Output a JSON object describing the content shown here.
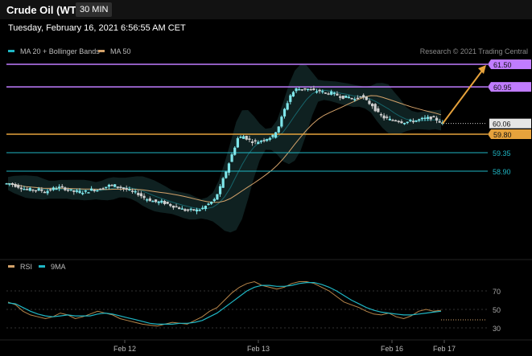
{
  "header": {
    "title": "Crude Oil (WTI)",
    "timeframe": "30 MIN"
  },
  "timestamp": "Tuesday, February 16, 2021 6:56:55 AM CET",
  "legend": {
    "bands": "MA 20 + Bollinger Bands",
    "ma50": "MA 50",
    "credit": "Research © 2021 Trading Central"
  },
  "rsi_legend": {
    "rsi": "RSI",
    "ma": "9MA"
  },
  "colors": {
    "purple": "#c07cff",
    "orange": "#e6a23c",
    "teal": "#1fb6c4",
    "tan": "#d4a26a",
    "current": "#dddddd"
  },
  "chart_data": [
    {
      "type": "candlestick",
      "levels": [
        {
          "value": 61.5,
          "label": "61.50",
          "style": "purple"
        },
        {
          "value": 60.95,
          "label": "60.95",
          "style": "purple"
        },
        {
          "value": 60.06,
          "label": "60.06",
          "style": "current"
        },
        {
          "value": 59.8,
          "label": "59.80",
          "style": "orange"
        },
        {
          "value": 59.35,
          "label": "59.35",
          "style": "teal"
        },
        {
          "value": 58.9,
          "label": "58.90",
          "style": "teal"
        }
      ],
      "x_ticks": [
        "Feb 12",
        "Feb 13",
        "Feb 16",
        "Feb 17"
      ],
      "close_path": [
        58.6,
        58.55,
        58.5,
        58.45,
        58.45,
        58.45,
        58.4,
        58.45,
        58.5,
        58.5,
        58.45,
        58.4,
        58.4,
        58.4,
        58.45,
        58.45,
        58.5,
        58.55,
        58.55,
        58.5,
        58.45,
        58.4,
        58.35,
        58.25,
        58.2,
        58.15,
        58.15,
        58.1,
        58.05,
        58.0,
        57.95,
        57.95,
        57.95,
        58.0,
        58.1,
        58.2,
        58.5,
        58.9,
        59.3,
        59.7,
        59.75,
        59.65,
        59.6,
        59.65,
        59.7,
        59.75,
        60.0,
        60.4,
        60.75,
        60.9,
        60.9,
        60.9,
        60.85,
        60.85,
        60.8,
        60.8,
        60.75,
        60.7,
        60.7,
        60.65,
        60.75,
        60.6,
        60.5,
        60.3,
        60.2,
        60.15,
        60.15,
        60.1,
        60.1,
        60.12,
        60.15,
        60.18,
        60.2,
        60.15,
        60.06
      ],
      "projection": {
        "from": 60.06,
        "to": 61.5
      }
    },
    {
      "type": "line",
      "title": "RSI",
      "y_ticks": [
        70,
        50,
        30
      ],
      "series": [
        {
          "name": "RSI",
          "values": [
            58,
            55,
            48,
            44,
            42,
            40,
            42,
            46,
            44,
            40,
            42,
            45,
            48,
            46,
            44,
            40,
            38,
            36,
            34,
            33,
            32,
            34,
            36,
            35,
            34,
            38,
            42,
            48,
            52,
            60,
            68,
            74,
            78,
            80,
            76,
            74,
            72,
            74,
            78,
            80,
            80,
            78,
            74,
            70,
            64,
            58,
            55,
            52,
            48,
            45,
            44,
            46,
            42,
            40,
            43,
            48,
            50,
            48,
            49
          ]
        },
        {
          "name": "9MA",
          "values": [
            57,
            56,
            52,
            48,
            45,
            43,
            42,
            43,
            44,
            43,
            43,
            43,
            45,
            46,
            45,
            43,
            41,
            39,
            37,
            35,
            34,
            34,
            34,
            35,
            35,
            36,
            38,
            42,
            46,
            52,
            58,
            64,
            70,
            74,
            76,
            76,
            75,
            75,
            76,
            78,
            79,
            79,
            77,
            74,
            70,
            65,
            60,
            56,
            52,
            49,
            47,
            46,
            45,
            44,
            44,
            45,
            46,
            47,
            48
          ]
        }
      ]
    }
  ]
}
